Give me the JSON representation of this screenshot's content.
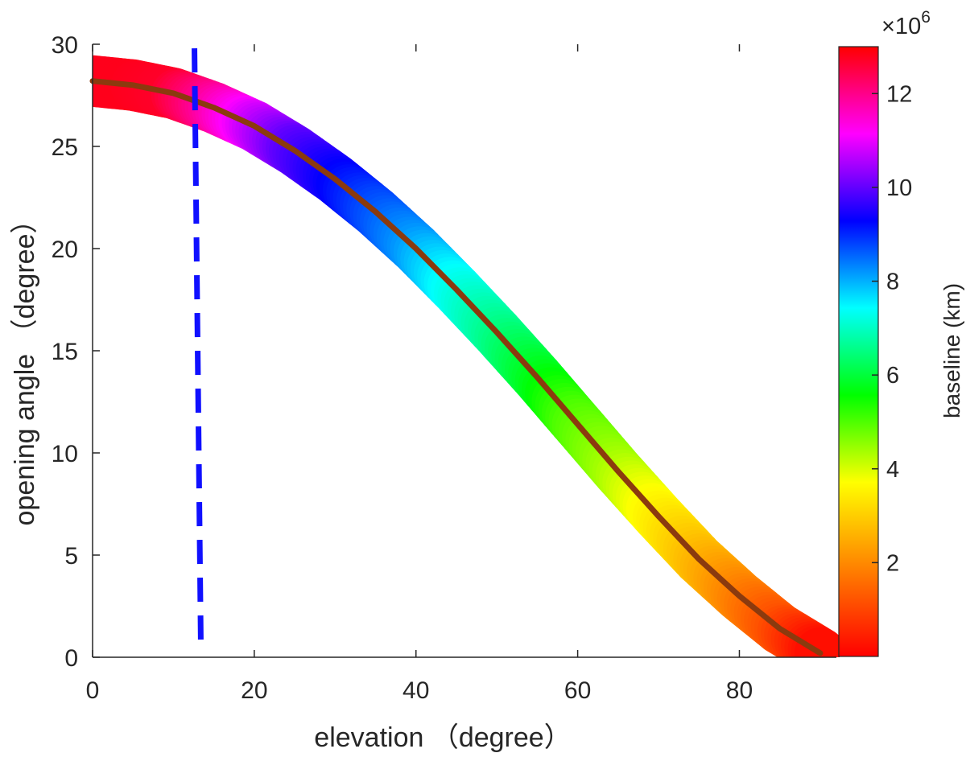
{
  "chart_data": {
    "type": "scatter",
    "xlabel": "elevation （degree）",
    "ylabel": "opening angle （degree）",
    "xlim": [
      0,
      92
    ],
    "ylim": [
      0,
      30
    ],
    "xticks": [
      0,
      20,
      40,
      60,
      80
    ],
    "xtick_labels": [
      "0",
      "20",
      "40",
      "60",
      "80"
    ],
    "yticks": [
      0,
      5,
      10,
      15,
      20,
      25,
      30
    ],
    "ytick_labels": [
      "0",
      "5",
      "10",
      "15",
      "20",
      "25",
      "30"
    ],
    "grid": false,
    "series": [
      {
        "name": "baseline-colored opening angle",
        "x": [
          0,
          5,
          10,
          15,
          20,
          25,
          30,
          35,
          40,
          45,
          50,
          55,
          60,
          65,
          70,
          75,
          80,
          85,
          90
        ],
        "y": [
          28.2,
          28.0,
          27.6,
          26.9,
          26.0,
          24.8,
          23.4,
          21.8,
          20.0,
          18.0,
          15.9,
          13.7,
          11.4,
          9.1,
          6.9,
          4.8,
          3.0,
          1.4,
          0.2
        ],
        "color_values": [
          12.8,
          12.8,
          12.7,
          11.9,
          10.9,
          10.0,
          9.4,
          8.8,
          8.2,
          7.4,
          6.7,
          5.9,
          5.0,
          4.4,
          3.6,
          2.8,
          2.0,
          1.2,
          0.2
        ]
      },
      {
        "name": "trend line",
        "color": "#8B3A0E",
        "x": [
          0,
          5,
          10,
          15,
          20,
          25,
          30,
          35,
          40,
          45,
          50,
          55,
          60,
          65,
          70,
          75,
          80,
          85,
          90
        ],
        "y": [
          28.2,
          28.0,
          27.6,
          26.9,
          26.0,
          24.8,
          23.4,
          21.8,
          20.0,
          18.0,
          15.9,
          13.7,
          11.4,
          9.1,
          6.9,
          4.8,
          3.0,
          1.4,
          0.2
        ]
      },
      {
        "name": "vertical reference",
        "style": "dashed",
        "color": "#1010FF",
        "x": [
          12.6,
          13.4
        ],
        "y": [
          29.8,
          0.2
        ]
      }
    ],
    "colorbar": {
      "label": "baseline (km)",
      "exponent": "×10",
      "exponent_power": "6",
      "range": [
        0,
        13
      ],
      "ticks": [
        2,
        4,
        6,
        8,
        10,
        12
      ],
      "tick_labels": [
        "2",
        "4",
        "6",
        "8",
        "10",
        "12"
      ],
      "colors": [
        "#FF0000",
        "#FF8000",
        "#FFFF00",
        "#00FF00",
        "#00FFFF",
        "#0000FF",
        "#FF00FF",
        "#FF0000"
      ]
    }
  }
}
